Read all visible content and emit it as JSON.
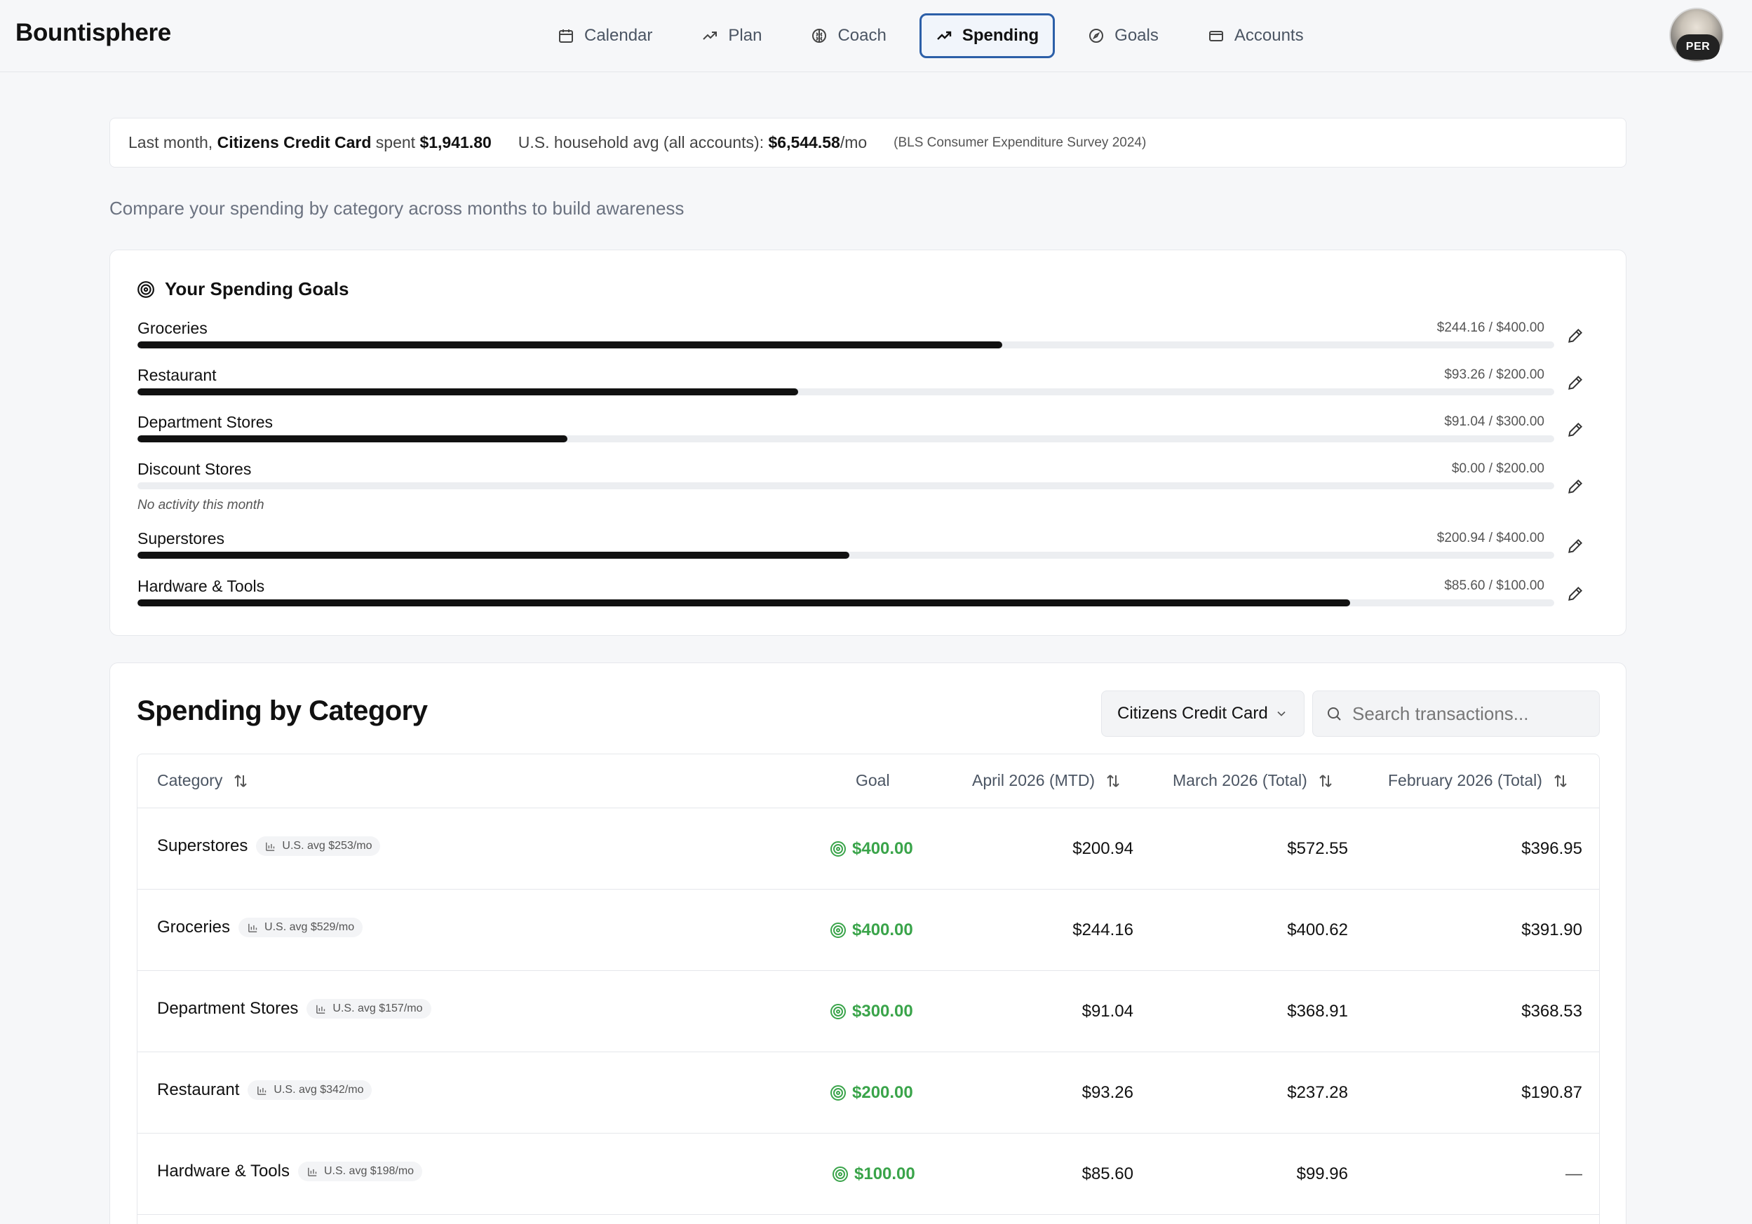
{
  "app": {
    "brand": "Bountisphere"
  },
  "nav": [
    {
      "label": "Calendar",
      "icon": "calendar-icon",
      "active": false
    },
    {
      "label": "Plan",
      "icon": "trend-icon",
      "active": false
    },
    {
      "label": "Coach",
      "icon": "brain-icon",
      "active": false
    },
    {
      "label": "Spending",
      "icon": "trend-icon",
      "active": true
    },
    {
      "label": "Goals",
      "icon": "compass-icon",
      "active": false
    },
    {
      "label": "Accounts",
      "icon": "card-icon",
      "active": false
    }
  ],
  "user": {
    "badge": "PER"
  },
  "banner": {
    "prefix": "Last month,",
    "account": "Citizens Credit Card",
    "spent_word": "spent",
    "spent": "$1,941.80",
    "avg_label": "U.S. household avg (all accounts):",
    "avg_value": "$6,544.58",
    "avg_unit": "/mo",
    "source": "(BLS Consumer Expenditure Survey 2024)"
  },
  "subtitle": "Compare your spending by category across months to build awareness",
  "goals": {
    "title": "Your Spending Goals",
    "items": [
      {
        "name": "Groceries",
        "amount": "$244.16 / $400.00",
        "progress": 0.6104,
        "note": ""
      },
      {
        "name": "Restaurant",
        "amount": "$93.26 / $200.00",
        "progress": 0.4663,
        "note": ""
      },
      {
        "name": "Department Stores",
        "amount": "$91.04 / $300.00",
        "progress": 0.3035,
        "note": ""
      },
      {
        "name": "Discount Stores",
        "amount": "$0.00 / $200.00",
        "progress": 0.0,
        "note": "No activity this month"
      },
      {
        "name": "Superstores",
        "amount": "$200.94 / $400.00",
        "progress": 0.5024,
        "note": ""
      },
      {
        "name": "Hardware & Tools",
        "amount": "$85.60 / $100.00",
        "progress": 0.856,
        "note": ""
      }
    ]
  },
  "category": {
    "title": "Spending by Category",
    "account_select": "Citizens Credit Card",
    "search_placeholder": "Search transactions...",
    "columns": {
      "category": "Category",
      "goal": "Goal",
      "april": "April 2026 (MTD)",
      "march": "March 2026 (Total)",
      "february": "February 2026 (Total)"
    },
    "rows": [
      {
        "name": "Superstores",
        "us_avg": "U.S. avg $253/mo",
        "goal": "$400.00",
        "april": "$200.94",
        "march": "$572.55",
        "february": "$396.95"
      },
      {
        "name": "Groceries",
        "us_avg": "U.S. avg $529/mo",
        "goal": "$400.00",
        "april": "$244.16",
        "march": "$400.62",
        "february": "$391.90"
      },
      {
        "name": "Department Stores",
        "us_avg": "U.S. avg $157/mo",
        "goal": "$300.00",
        "april": "$91.04",
        "march": "$368.91",
        "february": "$368.53"
      },
      {
        "name": "Restaurant",
        "us_avg": "U.S. avg $342/mo",
        "goal": "$200.00",
        "april": "$93.26",
        "march": "$237.28",
        "february": "$190.87"
      },
      {
        "name": "Hardware & Tools",
        "us_avg": "U.S. avg $198/mo",
        "goal": "$100.00",
        "april": "$85.60",
        "march": "$99.96",
        "february": "—"
      }
    ]
  },
  "colors": {
    "accent": "#2c5fa8",
    "goal_green": "#3aa44a",
    "bar": "#111111",
    "track": "#eceef1"
  }
}
